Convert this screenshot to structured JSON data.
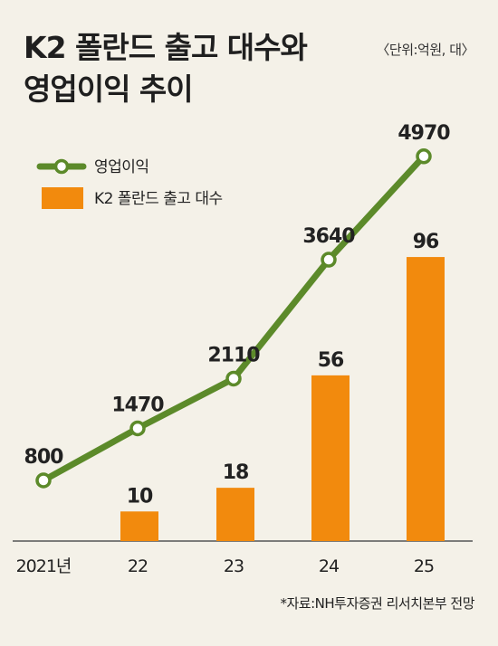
{
  "title": {
    "line1": "K2 폴란드 출고 대수와",
    "line2": "영업이익 추이"
  },
  "unit_note": "〈단위:억원, 대〉",
  "source_note": "*자료:NH투자증권 리서치본부 전망",
  "chart_data": {
    "type": "bar",
    "categories": [
      "2021년",
      "22",
      "23",
      "24",
      "25"
    ],
    "series": [
      {
        "name": "영업이익",
        "kind": "line",
        "color": "#5c8a2a",
        "values": [
          800,
          1470,
          2110,
          3640,
          4970
        ]
      },
      {
        "name": "K2 폴란드 출고 대수",
        "kind": "bar",
        "color": "#f28a0d",
        "values": [
          null,
          10,
          18,
          56,
          96
        ]
      }
    ],
    "legend_position": "top-left",
    "grid": false
  }
}
